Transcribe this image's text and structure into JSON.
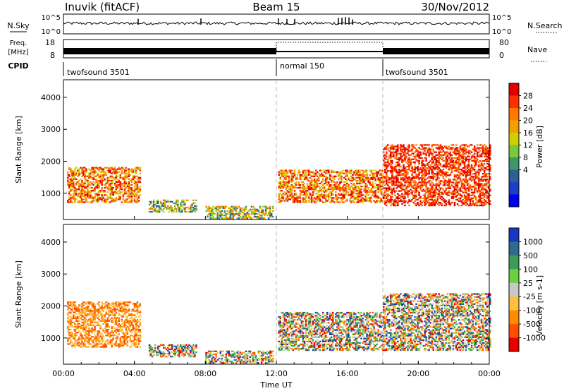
{
  "header": {
    "station": "Inuvik (fitACF)",
    "beam": "Beam 15",
    "date": "30/Nov/2012"
  },
  "top_panels": {
    "nsky_label": "N.Sky",
    "nsky_ticks": [
      "10^5",
      "10^0"
    ],
    "nsearch_label": "N.Search",
    "nsearch_ticks": [
      "10^5",
      "10^0"
    ],
    "freq_label": "Freq.",
    "freq_unit": "[MHz]",
    "freq_ticks": [
      "18",
      "8"
    ],
    "nave_label": "Nave",
    "nave_ticks": [
      "80",
      "0"
    ],
    "cpid_label": "CPID",
    "cpid_segments": [
      {
        "label": "twofsound 3501",
        "start_hour": 0,
        "end_hour": 12
      },
      {
        "label": "normal 150",
        "start_hour": 12,
        "end_hour": 18
      },
      {
        "label": "twofsound 3501",
        "start_hour": 18,
        "end_hour": 24
      }
    ]
  },
  "chart_data": [
    {
      "type": "heatmap",
      "name": "power",
      "ylabel": "Slant Range [km]",
      "yticks": [
        "4000",
        "3000",
        "2000",
        "1000"
      ],
      "xlim_hours": [
        0,
        24
      ],
      "ylim_km": [
        180,
        4550
      ],
      "colorbar_label": "Power [dB]",
      "colorbar_ticks": [
        "28",
        "24",
        "20",
        "16",
        "12",
        "8",
        "4"
      ],
      "colorbar_colors": [
        "#e00000",
        "#ff3000",
        "#ff7800",
        "#f0a000",
        "#ccd000",
        "#7cc83c",
        "#3c9868",
        "#2c6090",
        "#1a40c8",
        "#0000f0"
      ],
      "regions": [
        {
          "t0": 0.2,
          "t1": 4.3,
          "r0": 700,
          "r1": 1800,
          "level": "mid-high"
        },
        {
          "t0": 4.8,
          "t1": 7.5,
          "r0": 400,
          "r1": 800,
          "level": "mid"
        },
        {
          "t0": 8.0,
          "t1": 11.8,
          "r0": 200,
          "r1": 600,
          "level": "mid"
        },
        {
          "t0": 12.1,
          "t1": 18.0,
          "r0": 700,
          "r1": 1700,
          "level": "mid-high"
        },
        {
          "t0": 18.0,
          "t1": 24.0,
          "r0": 600,
          "r1": 2500,
          "level": "high"
        }
      ]
    },
    {
      "type": "heatmap",
      "name": "velocity",
      "ylabel": "Slant Range [km]",
      "yticks": [
        "4000",
        "3000",
        "2000",
        "1000"
      ],
      "xlim_hours": [
        0,
        24
      ],
      "ylim_km": [
        180,
        4550
      ],
      "colorbar_label": "Velocity [m s-1]",
      "colorbar_ticks": [
        "1000",
        "500",
        "100",
        "25",
        "-25",
        "-100",
        "-500",
        "-1000"
      ],
      "colorbar_colors": [
        "#1838c0",
        "#2c6c8c",
        "#3c9c5c",
        "#6cd040",
        "#c8c8c8",
        "#ffc040",
        "#ff8c00",
        "#ff5000",
        "#e80000"
      ],
      "regions": [
        {
          "t0": 0.2,
          "t1": 4.3,
          "r0": 700,
          "r1": 2100,
          "level": "negative"
        },
        {
          "t0": 4.8,
          "t1": 7.5,
          "r0": 400,
          "r1": 800,
          "level": "mixed"
        },
        {
          "t0": 8.0,
          "t1": 11.8,
          "r0": 200,
          "r1": 600,
          "level": "mixed"
        },
        {
          "t0": 12.1,
          "t1": 18.0,
          "r0": 600,
          "r1": 1800,
          "level": "mixed"
        },
        {
          "t0": 18.0,
          "t1": 24.0,
          "r0": 600,
          "r1": 2400,
          "level": "mixed"
        }
      ]
    }
  ],
  "x_axis": {
    "ticks": [
      "00:00",
      "04:00",
      "08:00",
      "12:00",
      "16:00",
      "20:00",
      "00:00"
    ],
    "label": "Time UT"
  }
}
